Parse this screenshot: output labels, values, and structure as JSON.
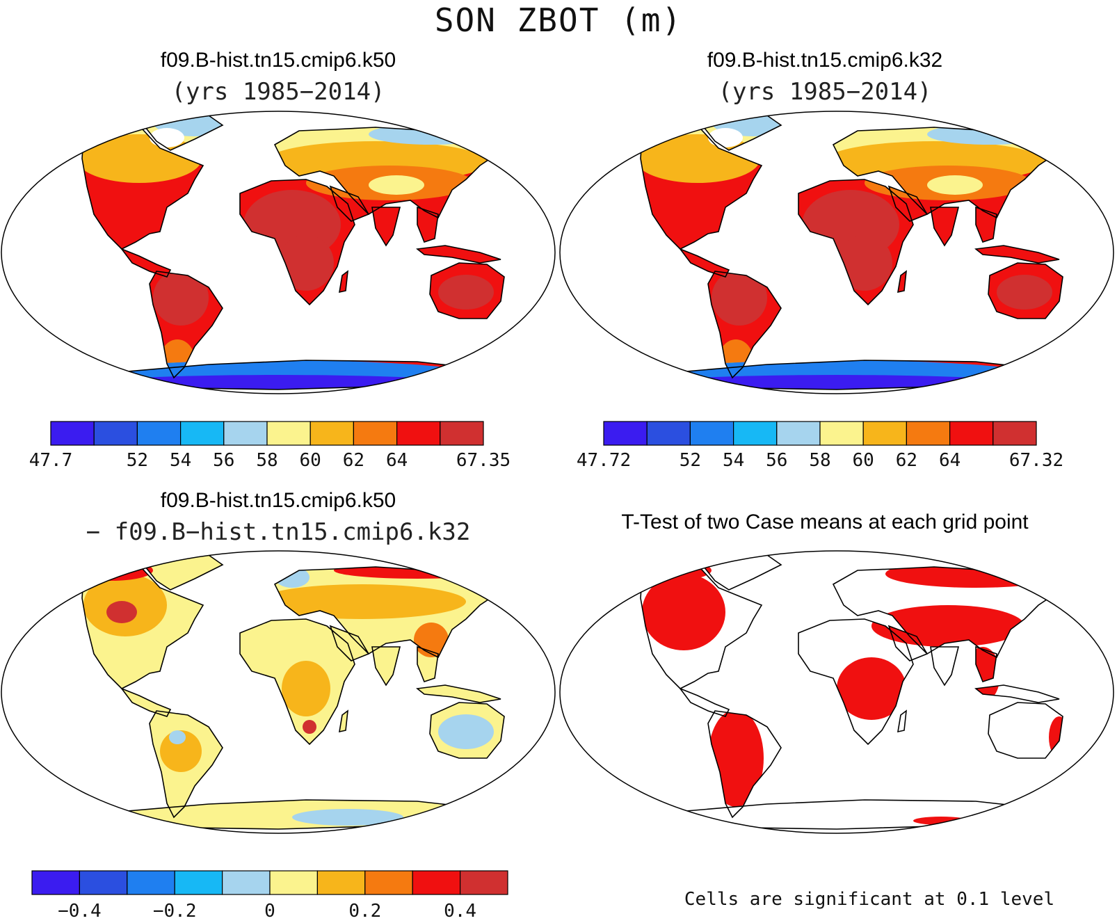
{
  "title": "SON ZBOT (m)",
  "panels": [
    {
      "title": "f09.B-hist.tn15.cmip6.k50",
      "subtitle": "(yrs 1985−2014)",
      "colorbar": {
        "colors": [
          "#3b1cf0",
          "#2b4fe0",
          "#1f7ff0",
          "#17b8f5",
          "#a6d4ee",
          "#fbf38e",
          "#f7b51b",
          "#f57a10",
          "#f01010",
          "#d03030"
        ],
        "labels": [
          "47.7",
          "",
          "52",
          "54",
          "56",
          "58",
          "60",
          "62",
          "64",
          "",
          "67.35"
        ]
      }
    },
    {
      "title": "f09.B-hist.tn15.cmip6.k32",
      "subtitle": "(yrs 1985−2014)",
      "colorbar": {
        "colors": [
          "#3b1cf0",
          "#2b4fe0",
          "#1f7ff0",
          "#17b8f5",
          "#a6d4ee",
          "#fbf38e",
          "#f7b51b",
          "#f57a10",
          "#f01010",
          "#d03030"
        ],
        "labels": [
          "47.72",
          "",
          "52",
          "54",
          "56",
          "58",
          "60",
          "62",
          "64",
          "",
          "67.32"
        ]
      }
    },
    {
      "title": "f09.B-hist.tn15.cmip6.k50",
      "subtitle": "− f09.B−hist.tn15.cmip6.k32",
      "colorbar": {
        "colors": [
          "#3b1cf0",
          "#2b4fe0",
          "#1f7ff0",
          "#17b8f5",
          "#a6d4ee",
          "#fbf38e",
          "#f7b51b",
          "#f57a10",
          "#f01010",
          "#d03030"
        ],
        "labels": [
          "",
          "−0.4",
          "",
          "−0.2",
          "",
          "0",
          "",
          "0.2",
          "",
          "0.4",
          ""
        ]
      }
    },
    {
      "title": "T-Test of two Case means at each grid point",
      "note": "Cells are significant at 0.1 level"
    }
  ],
  "fills": {
    "ocean": "#ffffff",
    "outline": "#000000",
    "deep_red": "#d03030",
    "red": "#f01010",
    "orange": "#f57a10",
    "gold": "#f7b51b",
    "yellow": "#fbf38e",
    "lightblue": "#a6d4ee",
    "cyan": "#17b8f5",
    "blue": "#1f7ff0",
    "indigo": "#3b1cf0",
    "sig_red": "#f01010"
  }
}
